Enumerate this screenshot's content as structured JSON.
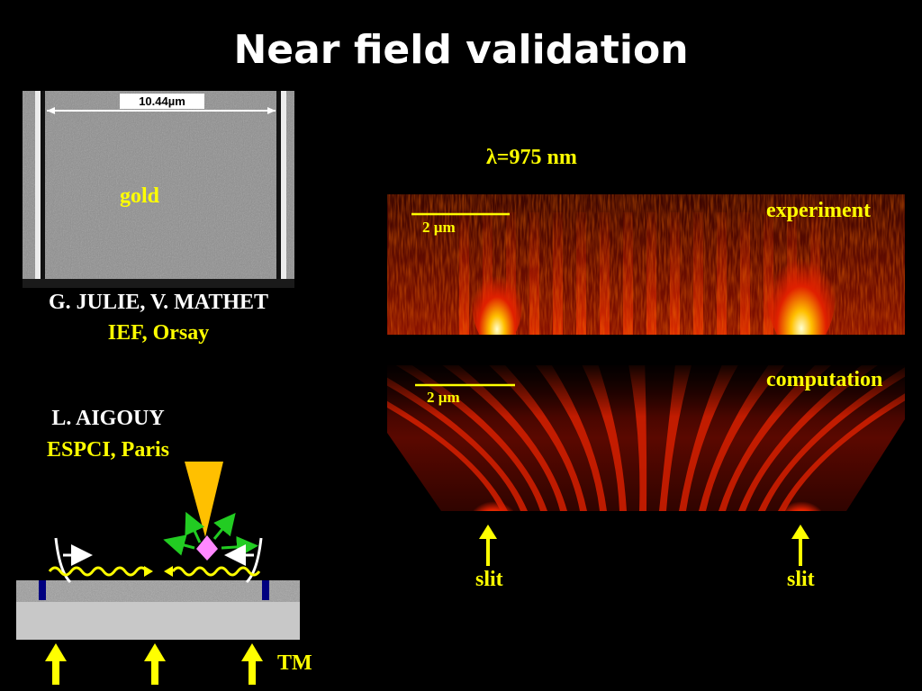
{
  "title": "Near field validation",
  "sem": {
    "scale_label": "10.44µm",
    "material_label": "gold"
  },
  "credits": {
    "group1_names": "G. JULIE, V. MATHET",
    "group1_lab": "IEF, Orsay",
    "group2_name": "L. AIGOUY",
    "group2_lab": "ESPCI, Paris"
  },
  "wavelength": "λ=975 nm",
  "experiment": {
    "label": "experiment",
    "scale": "2 µm"
  },
  "computation": {
    "label": "computation",
    "scale": "2 µm"
  },
  "slits": [
    "slit",
    "slit"
  ],
  "polarization": "TM",
  "colors": {
    "text_yellow": "#ffff00",
    "background": "#000000",
    "tip": "#ffc000",
    "probe": "#ff88ff"
  }
}
